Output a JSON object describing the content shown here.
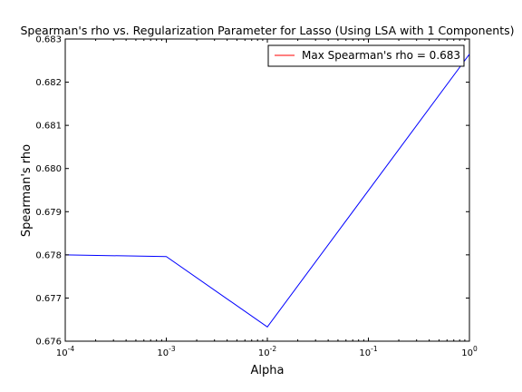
{
  "chart_data": {
    "type": "line",
    "title": "Spearman's rho vs. Regularization Parameter for Lasso (Using LSA with 1 Components)",
    "xlabel": "Alpha",
    "ylabel": "Spearman's rho",
    "xscale": "log",
    "xlim": [
      0.0001,
      1
    ],
    "ylim": [
      0.676,
      0.683
    ],
    "x_ticks": [
      {
        "value": 0.0001,
        "base": "10",
        "exp": "-4"
      },
      {
        "value": 0.001,
        "base": "10",
        "exp": "-3"
      },
      {
        "value": 0.01,
        "base": "10",
        "exp": "-2"
      },
      {
        "value": 0.1,
        "base": "10",
        "exp": "-1"
      },
      {
        "value": 1,
        "base": "10",
        "exp": "0"
      }
    ],
    "y_ticks": [
      "0.676",
      "0.677",
      "0.678",
      "0.679",
      "0.680",
      "0.681",
      "0.682",
      "0.683"
    ],
    "grid": false,
    "legend_position": "top-right",
    "series": [
      {
        "color": "#0000ff",
        "x": [
          0.0001,
          0.001,
          0.01,
          1
        ],
        "y": [
          0.678,
          0.67796,
          0.67633,
          0.68265
        ]
      }
    ],
    "legend": [
      {
        "label": "Max Spearman's rho = 0.683",
        "color": "#ff0000"
      }
    ]
  }
}
